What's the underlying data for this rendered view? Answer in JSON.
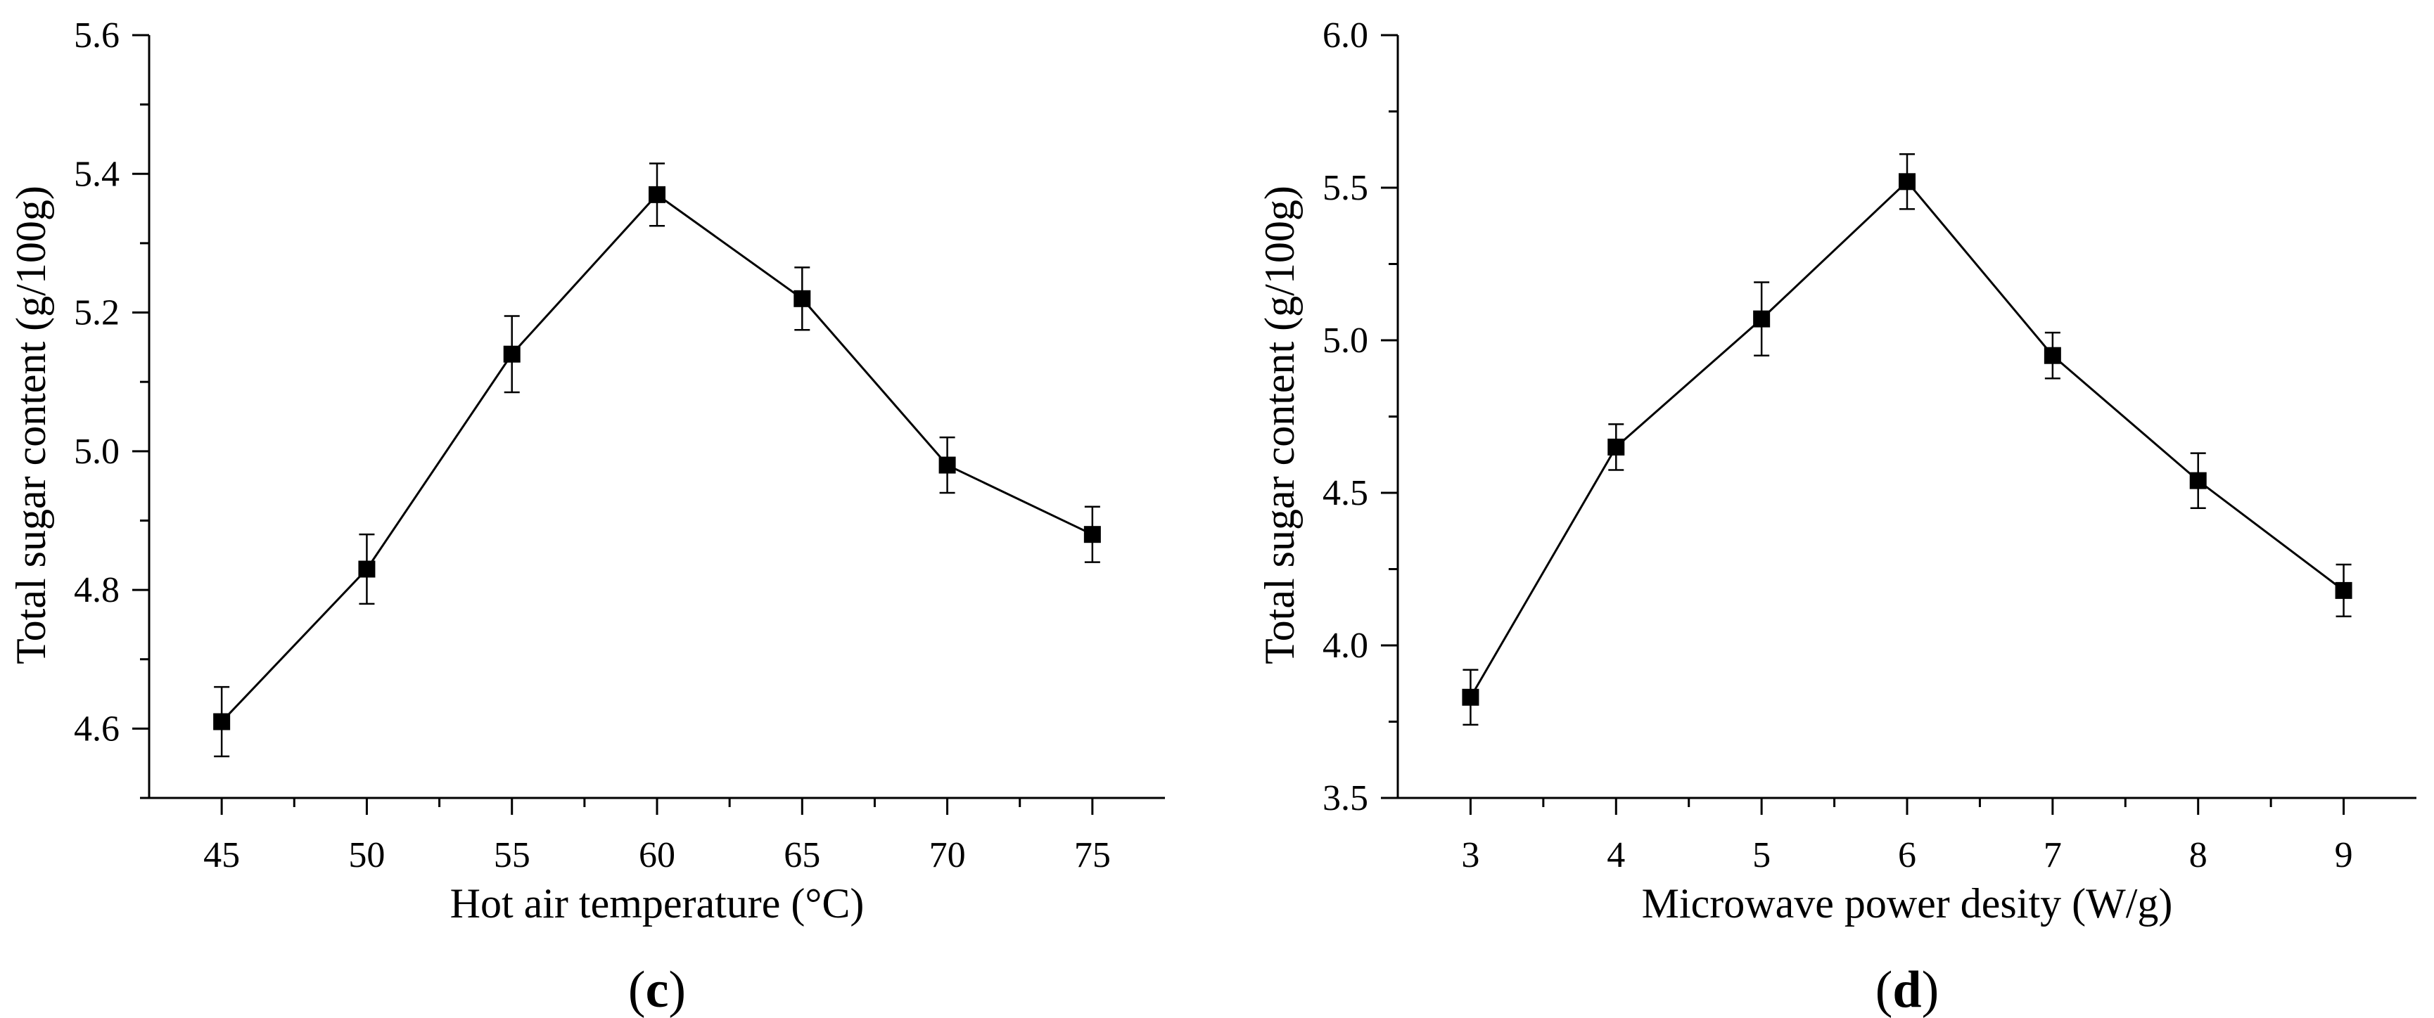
{
  "chart_data": [
    {
      "type": "line",
      "panel_label": {
        "open": "(",
        "letter": "c",
        "close": ")"
      },
      "xlabel": "Hot air temperature (°C)",
      "ylabel": "Total sugar content (g/100g)",
      "x": [
        45,
        50,
        55,
        60,
        65,
        70,
        75
      ],
      "series": [
        {
          "name": "Total sugar content",
          "values": [
            4.61,
            4.83,
            5.14,
            5.37,
            5.22,
            4.98,
            4.88
          ],
          "errors": [
            0.05,
            0.05,
            0.055,
            0.045,
            0.045,
            0.04,
            0.04
          ]
        }
      ],
      "xlim": [
        42.5,
        77.5
      ],
      "ylim": [
        4.5,
        5.6
      ],
      "x_major_ticks": [
        45,
        50,
        55,
        60,
        65,
        70,
        75
      ],
      "x_minor_ticks": [
        47.5,
        52.5,
        57.5,
        62.5,
        67.5,
        72.5
      ],
      "y_major_ticks": [
        4.6,
        4.8,
        5.0,
        5.2,
        5.4,
        5.6
      ],
      "y_minor_ticks": [
        4.5,
        4.7,
        4.9,
        5.1,
        5.3,
        5.5
      ],
      "y_tick_decimals": 1,
      "marker": "square",
      "line_color": "#000000"
    },
    {
      "type": "line",
      "panel_label": {
        "open": "(",
        "letter": "d",
        "close": ")"
      },
      "xlabel": "Microwave power desity (W/g)",
      "ylabel": "Total sugar content (g/100g)",
      "x": [
        3,
        4,
        5,
        6,
        7,
        8,
        9
      ],
      "series": [
        {
          "name": "Total sugar content",
          "values": [
            3.83,
            4.65,
            5.07,
            5.52,
            4.95,
            4.54,
            4.18
          ],
          "errors": [
            0.09,
            0.075,
            0.12,
            0.09,
            0.075,
            0.09,
            0.085
          ]
        }
      ],
      "xlim": [
        2.5,
        9.5
      ],
      "ylim": [
        3.5,
        6.0
      ],
      "x_major_ticks": [
        3,
        4,
        5,
        6,
        7,
        8,
        9
      ],
      "x_minor_ticks": [
        3.5,
        4.5,
        5.5,
        6.5,
        7.5,
        8.5
      ],
      "y_major_ticks": [
        3.5,
        4.0,
        4.5,
        5.0,
        5.5,
        6.0
      ],
      "y_minor_ticks": [
        3.75,
        4.25,
        4.75,
        5.25,
        5.75
      ],
      "y_tick_decimals": 1,
      "marker": "square",
      "line_color": "#000000"
    }
  ]
}
